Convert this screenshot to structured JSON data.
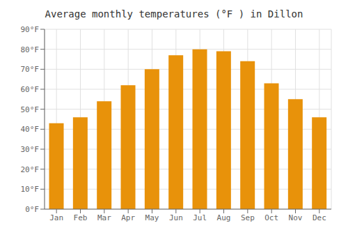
{
  "chart_data": {
    "type": "bar",
    "title": "Average monthly temperatures (°F ) in Dillon",
    "categories": [
      "Jan",
      "Feb",
      "Mar",
      "Apr",
      "May",
      "Jun",
      "Jul",
      "Aug",
      "Sep",
      "Oct",
      "Nov",
      "Dec"
    ],
    "values": [
      43,
      46,
      54,
      62,
      70,
      77,
      80,
      79,
      74,
      63,
      55,
      46
    ],
    "color": "#E8920A",
    "ylim": [
      0,
      90
    ],
    "yticks": [
      {
        "value": 0,
        "label": "0°F"
      },
      {
        "value": 10,
        "label": "10°F"
      },
      {
        "value": 20,
        "label": "20°F"
      },
      {
        "value": 30,
        "label": "30°F"
      },
      {
        "value": 40,
        "label": "40°F"
      },
      {
        "value": 50,
        "label": "50°F"
      },
      {
        "value": 60,
        "label": "60°F"
      },
      {
        "value": 70,
        "label": "70°F"
      },
      {
        "value": 80,
        "label": "80°F"
      },
      {
        "value": 90,
        "label": "90°F"
      }
    ],
    "grid": true
  }
}
